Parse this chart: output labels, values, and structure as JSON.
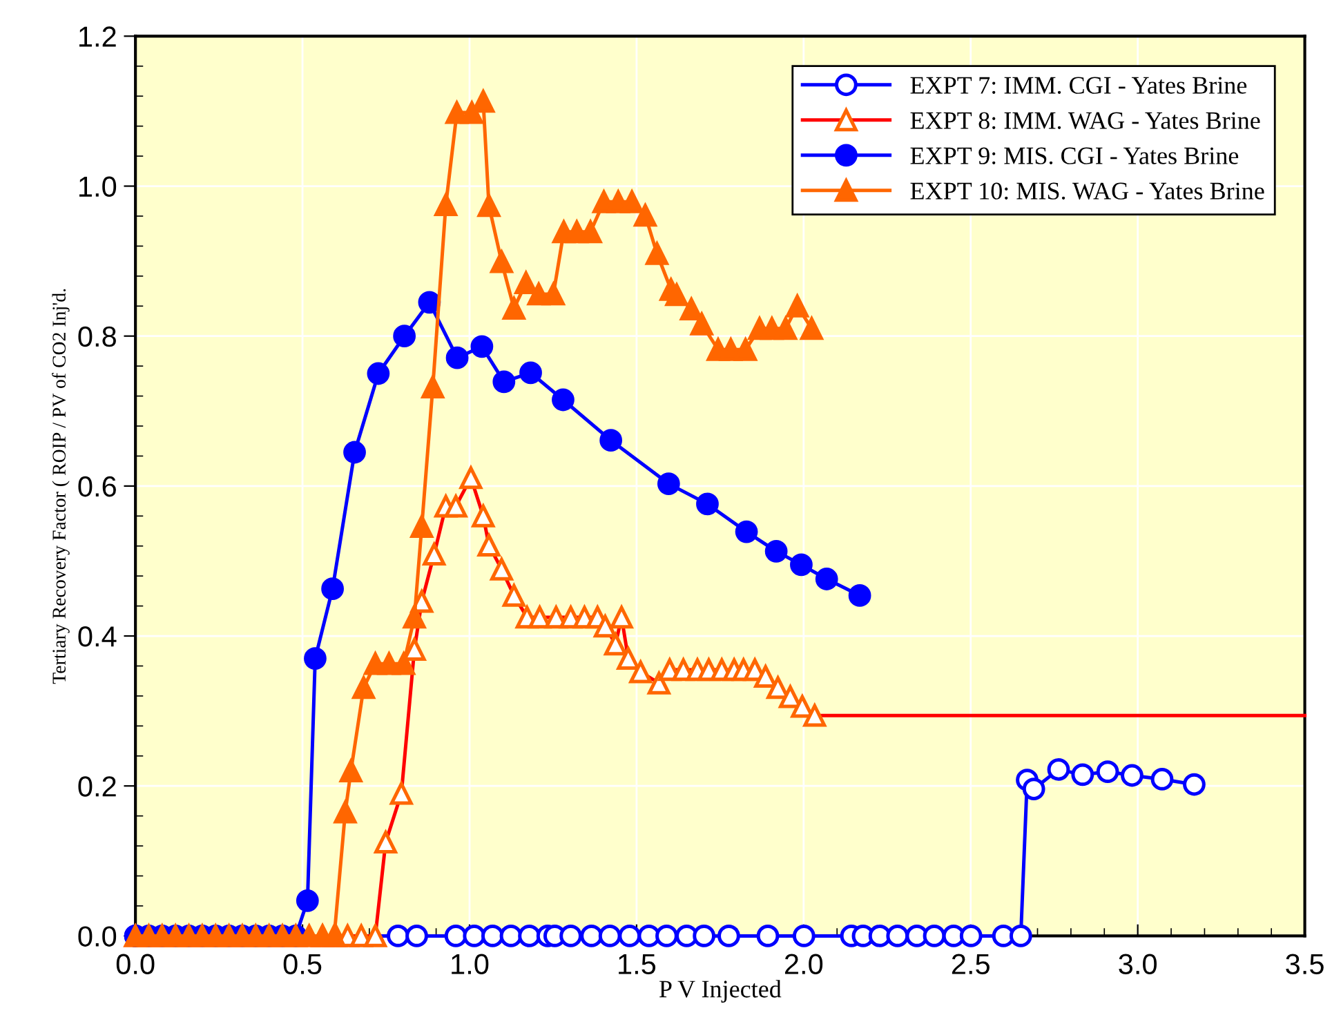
{
  "chart_data": {
    "type": "line",
    "xlabel": "P V Injected",
    "ylabel": "Tertiary Recovery Factor ( ROIP / PV of CO2 Inj'd.",
    "xlim": [
      0,
      3.5
    ],
    "ylim": [
      0,
      1.2
    ],
    "xticks": [
      {
        "value": 0,
        "label": "0.0"
      },
      0.5,
      {
        "value": 1,
        "label": "1.0"
      },
      1.5,
      {
        "value": 2,
        "label": "2.0"
      },
      2.5,
      {
        "value": 3,
        "label": "3.0"
      },
      3.5
    ],
    "yticks": [
      {
        "value": 0,
        "label": "0.0"
      },
      0.2,
      0.4,
      0.6,
      0.8,
      {
        "value": 1,
        "label": "1.0"
      },
      1.2
    ],
    "grid": true,
    "legend": "top right",
    "line_style": "solid",
    "series": [
      {
        "name": "EXPT 7: IMM. CGI - Yates Brine",
        "color": "#0000ff",
        "marker": "circle",
        "x": [
          0,
          0.786,
          0.842,
          0.959,
          1.014,
          1.069,
          1.124,
          1.179,
          1.234,
          1.255,
          1.303,
          1.365,
          1.42,
          1.479,
          1.537,
          1.59,
          1.65,
          1.702,
          1.776,
          1.893,
          2.001,
          2.143,
          2.178,
          2.228,
          2.281,
          2.339,
          2.391,
          2.449,
          2.501,
          2.598,
          2.65,
          2.669,
          2.689,
          2.763,
          2.835,
          2.91,
          2.983,
          3.073,
          3.169
        ],
        "values": [
          0,
          0,
          0,
          0,
          0,
          0,
          0,
          0,
          0,
          0,
          0,
          0,
          0,
          0,
          0,
          0,
          0,
          0,
          0,
          0,
          0,
          0,
          0,
          0,
          0,
          0,
          0,
          0,
          0,
          0,
          0,
          0.208,
          0.196,
          0.222,
          0.215,
          0.219,
          0.214,
          0.209,
          0.202
        ]
      },
      {
        "color": "#ff0000",
        "marker": "none",
        "x": [
          0.56,
          0.6,
          0.635,
          0.676,
          0.718,
          0.749,
          0.796,
          0.835,
          0.857,
          0.894,
          0.929,
          0.959,
          1.004,
          1.041,
          1.058,
          1.096,
          1.133,
          1.172,
          1.21,
          1.259,
          1.303,
          1.344,
          1.383,
          1.406,
          1.437,
          1.455,
          1.475,
          1.512,
          1.567,
          1.599,
          1.64,
          1.682,
          1.716,
          1.755,
          1.792,
          1.82,
          1.854,
          1.886,
          1.923,
          1.96,
          1.996,
          2.033,
          3.5
        ],
        "values": [
          0,
          0,
          0,
          0,
          0,
          0.125,
          0.19,
          0.382,
          0.446,
          0.509,
          0.573,
          0.573,
          0.611,
          0.56,
          0.521,
          0.489,
          0.454,
          0.425,
          0.425,
          0.425,
          0.425,
          0.425,
          0.425,
          0.413,
          0.389,
          0.425,
          0.37,
          0.352,
          0.337,
          0.355,
          0.355,
          0.355,
          0.355,
          0.355,
          0.355,
          0.355,
          0.355,
          0.346,
          0.331,
          0.319,
          0.306,
          0.294,
          0.294
        ]
      },
      {
        "name": "EXPT 8: IMM. WAG - Yates Brine",
        "type": "scatter",
        "color": "#ff6600",
        "marker": "triangle",
        "x": [
          0.56,
          0.6,
          0.635,
          0.676,
          0.718,
          0.749,
          0.796,
          0.835,
          0.857,
          0.894,
          0.929,
          0.959,
          1.004,
          1.041,
          1.058,
          1.096,
          1.133,
          1.172,
          1.21,
          1.259,
          1.303,
          1.344,
          1.383,
          1.406,
          1.437,
          1.455,
          1.475,
          1.512,
          1.567,
          1.599,
          1.64,
          1.682,
          1.716,
          1.755,
          1.792,
          1.82,
          1.854,
          1.886,
          1.923,
          1.96,
          1.996,
          2.033
        ],
        "values": [
          0,
          0,
          0,
          0,
          0,
          0.125,
          0.19,
          0.382,
          0.446,
          0.509,
          0.573,
          0.573,
          0.611,
          0.56,
          0.521,
          0.489,
          0.454,
          0.425,
          0.425,
          0.425,
          0.425,
          0.425,
          0.425,
          0.413,
          0.389,
          0.425,
          0.37,
          0.352,
          0.337,
          0.355,
          0.355,
          0.355,
          0.355,
          0.355,
          0.355,
          0.355,
          0.355,
          0.346,
          0.331,
          0.319,
          0.306,
          0.294
        ]
      },
      {
        "name": "EXPT 9: MIS. CGI - Yates Brine",
        "color": "#0000ff",
        "marker": "circle",
        "x": [
          0,
          0.04,
          0.08,
          0.12,
          0.16,
          0.2,
          0.24,
          0.28,
          0.32,
          0.36,
          0.4,
          0.44,
          0.48,
          0.515,
          0.538,
          0.59,
          0.656,
          0.727,
          0.805,
          0.88,
          0.963,
          1.037,
          1.103,
          1.183,
          1.28,
          1.423,
          1.596,
          1.712,
          1.829,
          1.918,
          1.993,
          2.069,
          2.168
        ],
        "values": [
          0,
          0,
          0,
          0,
          0,
          0,
          0,
          0,
          0,
          0,
          0,
          0,
          0,
          0.047,
          0.37,
          0.463,
          0.645,
          0.75,
          0.8,
          0.845,
          0.771,
          0.786,
          0.739,
          0.751,
          0.715,
          0.661,
          0.603,
          0.576,
          0.539,
          0.513,
          0.495,
          0.476,
          0.454
        ]
      },
      {
        "name": "EXPT 10: MIS. WAG - Yates Brine",
        "color": "#ff6600",
        "marker": "triangle",
        "x": [
          0,
          0.04,
          0.08,
          0.12,
          0.16,
          0.2,
          0.24,
          0.28,
          0.32,
          0.36,
          0.4,
          0.44,
          0.48,
          0.52,
          0.56,
          0.595,
          0.628,
          0.645,
          0.683,
          0.718,
          0.759,
          0.803,
          0.835,
          0.857,
          0.89,
          0.929,
          0.962,
          1.007,
          1.041,
          1.058,
          1.096,
          1.133,
          1.169,
          1.207,
          1.251,
          1.282,
          1.321,
          1.362,
          1.402,
          1.445,
          1.486,
          1.526,
          1.561,
          1.603,
          1.62,
          1.664,
          1.695,
          1.744,
          1.782,
          1.826,
          1.868,
          1.905,
          1.946,
          1.981,
          2.024
        ],
        "values": [
          0,
          0,
          0,
          0,
          0,
          0,
          0,
          0,
          0,
          0,
          0,
          0,
          0,
          0,
          0,
          0,
          0.165,
          0.22,
          0.331,
          0.363,
          0.363,
          0.363,
          0.425,
          0.546,
          0.732,
          0.975,
          1.098,
          1.098,
          1.113,
          0.974,
          0.899,
          0.837,
          0.871,
          0.856,
          0.856,
          0.939,
          0.939,
          0.939,
          0.979,
          0.979,
          0.979,
          0.961,
          0.91,
          0.862,
          0.855,
          0.836,
          0.816,
          0.782,
          0.782,
          0.782,
          0.81,
          0.81,
          0.81,
          0.84,
          0.81
        ]
      }
    ]
  }
}
